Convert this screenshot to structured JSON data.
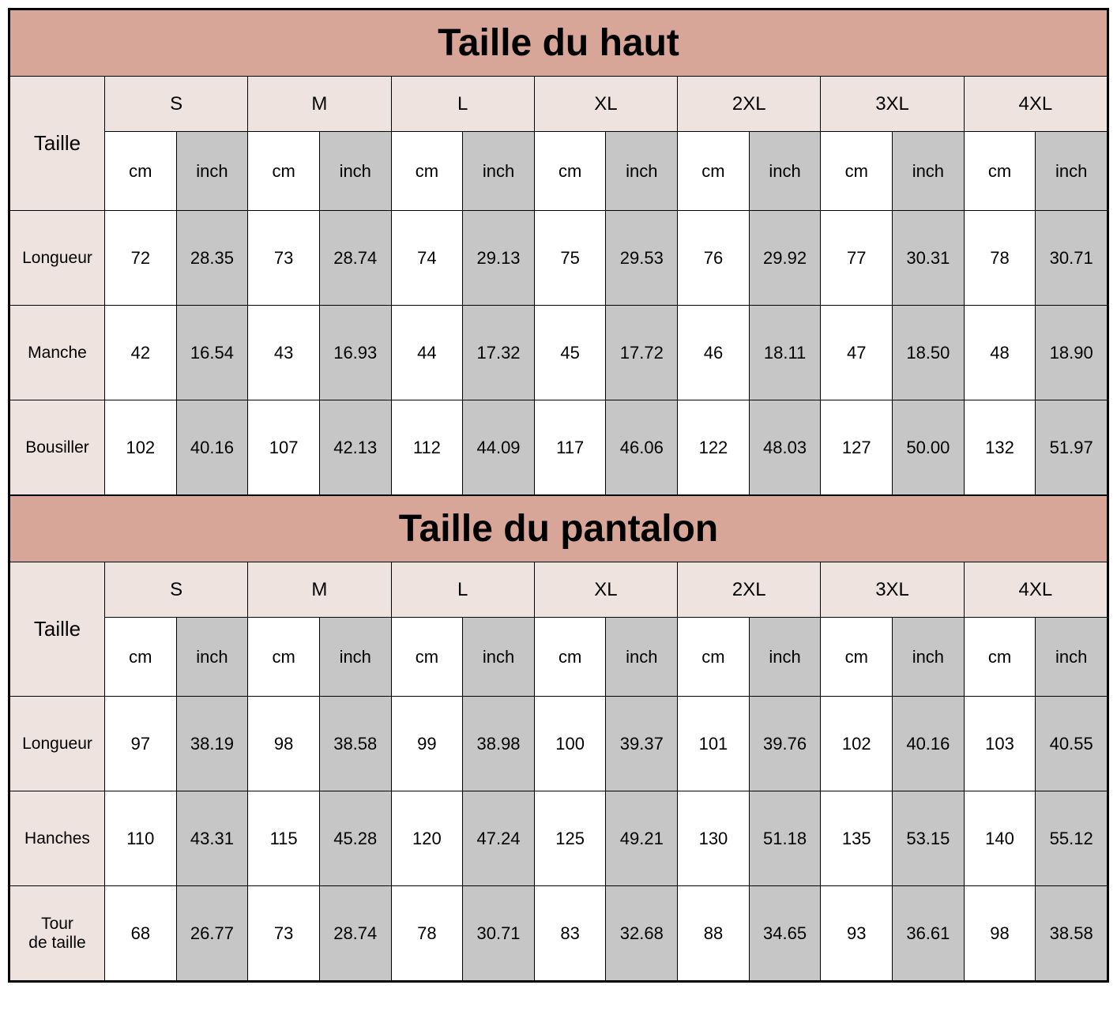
{
  "colors": {
    "title_bg": "#d8a599",
    "head_bg": "#efe3df",
    "inch_bg": "#c6c6c6",
    "cm_bg": "#ffffff",
    "border": "#000000"
  },
  "units": {
    "cm": "cm",
    "inch": "inch"
  },
  "top": {
    "title": "Taille du haut",
    "row_header": "Taille",
    "sizes": [
      "S",
      "M",
      "L",
      "XL",
      "2XL",
      "3XL",
      "4XL"
    ],
    "measurements": [
      {
        "label": "Longueur",
        "cm": [
          72,
          73,
          74,
          75,
          76,
          77,
          78
        ],
        "inch": [
          "28.35",
          "28.74",
          "29.13",
          "29.53",
          "29.92",
          "30.31",
          "30.71"
        ]
      },
      {
        "label": "Manche",
        "cm": [
          42,
          43,
          44,
          45,
          46,
          47,
          48
        ],
        "inch": [
          "16.54",
          "16.93",
          "17.32",
          "17.72",
          "18.11",
          "18.50",
          "18.90"
        ]
      },
      {
        "label": "Bousiller",
        "cm": [
          102,
          107,
          112,
          117,
          122,
          127,
          132
        ],
        "inch": [
          "40.16",
          "42.13",
          "44.09",
          "46.06",
          "48.03",
          "50.00",
          "51.97"
        ]
      }
    ]
  },
  "bottom": {
    "title": "Taille du pantalon",
    "row_header": "Taille",
    "sizes": [
      "S",
      "M",
      "L",
      "XL",
      "2XL",
      "3XL",
      "4XL"
    ],
    "measurements": [
      {
        "label": "Longueur",
        "cm": [
          97,
          98,
          99,
          100,
          101,
          102,
          103
        ],
        "inch": [
          "38.19",
          "38.58",
          "38.98",
          "39.37",
          "39.76",
          "40.16",
          "40.55"
        ]
      },
      {
        "label": "Hanches",
        "cm": [
          110,
          115,
          120,
          125,
          130,
          135,
          140
        ],
        "inch": [
          "43.31",
          "45.28",
          "47.24",
          "49.21",
          "51.18",
          "53.15",
          "55.12"
        ]
      },
      {
        "label": "Tour\nde taille",
        "cm": [
          68,
          73,
          78,
          83,
          88,
          93,
          98
        ],
        "inch": [
          "26.77",
          "28.74",
          "30.71",
          "32.68",
          "34.65",
          "36.61",
          "38.58"
        ]
      }
    ]
  }
}
